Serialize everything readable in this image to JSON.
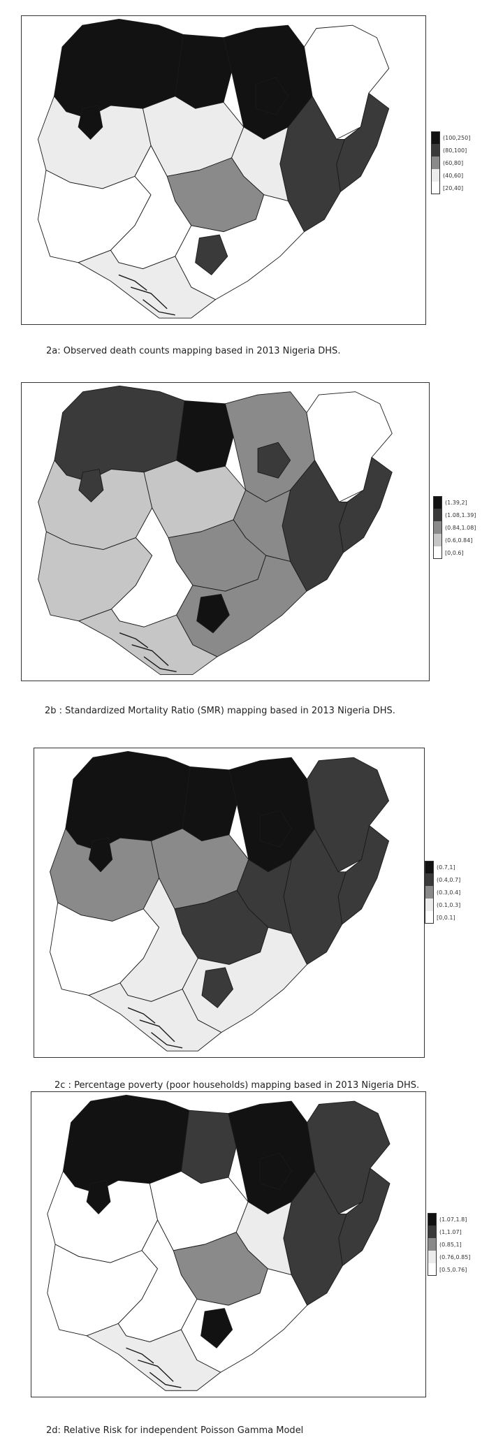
{
  "palette": [
    "#ffffff",
    "#ececec",
    "#c6c6c6",
    "#8a8a8a",
    "#3a3a3a",
    "#121212"
  ],
  "maps": [
    {
      "id": "2a",
      "caption": "2a:  Observed death counts mapping based in 2013 Nigeria DHS.",
      "legend": [
        {
          "label": "(100,250]",
          "color": "#121212"
        },
        {
          "label": "(80,100]",
          "color": "#3a3a3a"
        },
        {
          "label": "(60,80]",
          "color": "#8a8a8a"
        },
        {
          "label": "(40,60]",
          "color": "#ececec"
        },
        {
          "label": "[20,40]",
          "color": "#ffffff"
        }
      ],
      "region_fills": {
        "northwest": "#121212",
        "northcentral_belt": "#121212",
        "northeast_top": "#121212",
        "borno_east": "#ffffff",
        "east_border": "#3a3a3a",
        "adamawa": "#3a3a3a",
        "middle_west": "#ececec",
        "middle_central": "#ececec",
        "middle_east": "#ececec",
        "gombe": "#121212",
        "plateau_benue": "#8a8a8a",
        "southwest": "#ffffff",
        "south_central": "#ffffff",
        "southeast": "#ffffff",
        "small_dark": "#3a3a3a",
        "coast": "#ececec",
        "kebbi_island": "#121212"
      }
    },
    {
      "id": "2b",
      "caption": "2b :  Standardized Mortality Ratio (SMR) mapping  based in 2013 Nigeria DHS.",
      "legend": [
        {
          "label": "(1.39,2]",
          "color": "#121212"
        },
        {
          "label": "(1.08,1.39]",
          "color": "#3a3a3a"
        },
        {
          "label": "(0.84,1.08]",
          "color": "#8a8a8a"
        },
        {
          "label": "(0.6,0.84]",
          "color": "#c6c6c6"
        },
        {
          "label": "[0,0.6]",
          "color": "#ffffff"
        }
      ],
      "region_fills": {
        "northwest": "#3a3a3a",
        "northcentral_belt": "#121212",
        "northeast_top": "#8a8a8a",
        "borno_east": "#ffffff",
        "east_border": "#3a3a3a",
        "adamawa": "#3a3a3a",
        "middle_west": "#c6c6c6",
        "middle_central": "#c6c6c6",
        "middle_east": "#8a8a8a",
        "gombe": "#3a3a3a",
        "plateau_benue": "#8a8a8a",
        "southwest": "#c6c6c6",
        "south_central": "#ffffff",
        "southeast": "#8a8a8a",
        "small_dark": "#121212",
        "coast": "#c6c6c6",
        "kebbi_island": "#3a3a3a"
      }
    },
    {
      "id": "2c",
      "caption": "2c : Percentage poverty (poor households)  mapping  based in 2013 Nigeria DHS.",
      "legend": [
        {
          "label": "(0.7,1]",
          "color": "#121212"
        },
        {
          "label": "(0.4,0.7]",
          "color": "#3a3a3a"
        },
        {
          "label": "(0.3,0.4]",
          "color": "#8a8a8a"
        },
        {
          "label": "(0.1,0.3]",
          "color": "#ececec"
        },
        {
          "label": "[0,0.1]",
          "color": "#ffffff"
        }
      ],
      "region_fills": {
        "northwest": "#121212",
        "northcentral_belt": "#121212",
        "northeast_top": "#121212",
        "borno_east": "#3a3a3a",
        "east_border": "#3a3a3a",
        "adamawa": "#3a3a3a",
        "middle_west": "#8a8a8a",
        "middle_central": "#8a8a8a",
        "middle_east": "#3a3a3a",
        "gombe": "#121212",
        "plateau_benue": "#3a3a3a",
        "southwest": "#ffffff",
        "south_central": "#ececec",
        "southeast": "#ececec",
        "small_dark": "#3a3a3a",
        "coast": "#ececec",
        "kebbi_island": "#121212"
      }
    },
    {
      "id": "2d",
      "caption": "2d: Relative Risk for independent  Poisson Gamma  Model",
      "legend": [
        {
          "label": "(1.07,1.8]",
          "color": "#121212"
        },
        {
          "label": "(1,1.07]",
          "color": "#3a3a3a"
        },
        {
          "label": "(0.85,1]",
          "color": "#8a8a8a"
        },
        {
          "label": "(0.76,0.85]",
          "color": "#ececec"
        },
        {
          "label": "[0.5,0.76]",
          "color": "#ffffff"
        }
      ],
      "region_fills": {
        "northwest": "#121212",
        "northcentral_belt": "#3a3a3a",
        "northeast_top": "#121212",
        "borno_east": "#3a3a3a",
        "east_border": "#3a3a3a",
        "adamawa": "#3a3a3a",
        "middle_west": "#ffffff",
        "middle_central": "#ffffff",
        "middle_east": "#ececec",
        "gombe": "#121212",
        "plateau_benue": "#8a8a8a",
        "southwest": "#ffffff",
        "south_central": "#ffffff",
        "southeast": "#ffffff",
        "small_dark": "#121212",
        "coast": "#ececec",
        "kebbi_island": "#121212"
      }
    }
  ]
}
